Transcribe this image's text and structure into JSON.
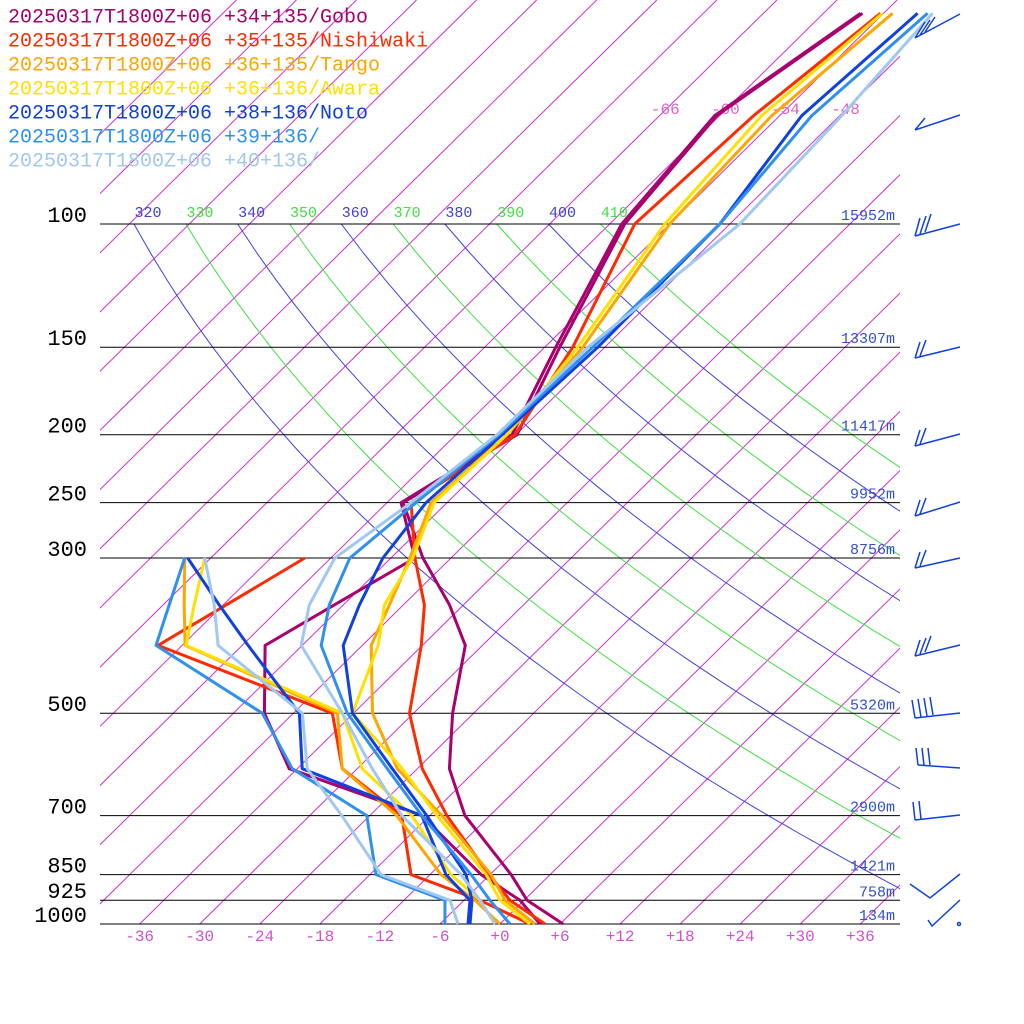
{
  "chart_data": {
    "type": "skewt",
    "pressure_levels": [
      100,
      150,
      200,
      250,
      300,
      500,
      700,
      850,
      925,
      1000
    ],
    "heights": [
      "15952m",
      "13307m",
      "11417m",
      "9952m",
      "8756m",
      "5320m",
      "2900m",
      "1421m",
      "758m",
      "134m"
    ],
    "xticks": [
      -36,
      -30,
      -24,
      -18,
      -12,
      -6,
      {
        "value": 0,
        "label": "+0"
      },
      {
        "value": 6,
        "label": "+6"
      },
      {
        "value": 12,
        "label": "+12"
      },
      {
        "value": 18,
        "label": "+18"
      },
      {
        "value": 24,
        "label": "+24"
      },
      {
        "value": 30,
        "label": "+30"
      },
      {
        "value": 36,
        "label": "+36"
      }
    ],
    "isotherms": [
      -120,
      -114,
      -108,
      -102,
      -96,
      -90,
      -84,
      -78,
      -72,
      -66,
      -60,
      -54,
      -48,
      -42,
      -36,
      -30,
      -24,
      -18,
      -12,
      -6,
      0,
      6,
      12,
      18,
      24,
      30,
      36
    ],
    "isotherm_labels": [
      -66,
      -60,
      -54,
      -48
    ],
    "dry_adiabats": [
      320,
      330,
      340,
      350,
      360,
      370,
      380,
      390,
      400,
      410
    ],
    "pressure": [
      1000,
      925,
      850,
      700,
      600,
      500,
      400,
      350,
      300,
      250,
      200,
      150,
      100,
      70,
      50
    ],
    "series": [
      {
        "name": "20250317T1800Z+06 +34+135/Gobo",
        "color": "#a8006e",
        "temperature": [
          6.3,
          0.3,
          -3.9,
          -14.5,
          -20.8,
          -26.1,
          -31.7,
          -37.4,
          -44.8,
          -52.4,
          -47.9,
          -52.5,
          -58.5,
          -60.3,
          -56.1
        ],
        "dewpoint": [
          4.0,
          -0.4,
          -6.9,
          -18.8,
          -36.8,
          -44.9,
          -51.7,
          -48.9,
          -45.6,
          -52.6,
          -48.4,
          -52.9,
          -58.8,
          -60.5,
          -56.3
        ]
      },
      {
        "name": "20250317T1800Z+06 +35+135/Nishiwaki",
        "color": "#ff2a00",
        "temperature": [
          4.5,
          -1.4,
          -6.1,
          -16.3,
          -23.5,
          -30.4,
          -36.1,
          -39.9,
          -45.6,
          -51.6,
          -48.1,
          -51.2,
          -57.5,
          -56.6,
          -54.3
        ],
        "dewpoint": [
          3.0,
          -4.4,
          -13.9,
          -20.8,
          -31.5,
          -38.1,
          -62.4,
          -59.7,
          -56.6,
          null,
          null,
          null,
          null,
          null,
          null
        ]
      },
      {
        "name": "20250317T1800Z+06 +36+135/Tango",
        "color": "#ffa500",
        "temperature": [
          3.5,
          -1.9,
          -5.9,
          -16.8,
          -26.0,
          -34.1,
          -41.1,
          -43.4,
          -46.1,
          -49.6,
          -48.9,
          -50.2,
          -54.0,
          -54.8,
          -53.1
        ],
        "dewpoint": [
          0,
          -4.9,
          -10.9,
          -21.3,
          -31.5,
          -37.6,
          -59.7,
          -63.9,
          -68.6,
          null,
          null,
          null,
          null,
          null,
          null
        ]
      },
      {
        "name": "20250317T1800Z+06 +36+136/Awara",
        "color": "#ffe000",
        "temperature": [
          3.0,
          -2.4,
          -6.4,
          -17.3,
          -25.5,
          -36.1,
          -40.4,
          -43.9,
          -45.8,
          -49.3,
          -48.9,
          -50.7,
          -54.5,
          -55.8,
          -54.1
        ],
        "dewpoint": [
          -0.5,
          -4.4,
          -9.9,
          -19.8,
          -29.5,
          -37.1,
          -59.6,
          -62.9,
          -66.6,
          null,
          null,
          null,
          null,
          null,
          null
        ]
      },
      {
        "name": "20250317T1800Z+06 +38+136/Noto",
        "color": "#1040e0",
        "temperature": [
          -3.0,
          -5.2,
          -8.4,
          -18.3,
          -26.5,
          -36.1,
          -43.9,
          -46.4,
          -48.8,
          -50.1,
          -49.4,
          -48.7,
          -49.0,
          -51.8,
          -50.6
        ],
        "dewpoint": [
          -3.2,
          -5.4,
          -10.4,
          -18.8,
          -35.5,
          -41.4,
          -53.4,
          -60.4,
          -68.3,
          null,
          null,
          null,
          null,
          null,
          null
        ]
      },
      {
        "name": "20250317T1800Z+06 +39+136/",
        "color": "#3090f0",
        "temperature": [
          1.0,
          -3.4,
          -7.9,
          -18.8,
          -27.0,
          -36.6,
          -46.1,
          -49.4,
          -52.1,
          -51.1,
          -49.7,
          -49.2,
          -49.0,
          -50.8,
          -49.6
        ],
        "dewpoint": [
          -5.5,
          -7.9,
          -17.4,
          -24.3,
          -36.5,
          -45.1,
          -62.6,
          -65.4,
          -68.6,
          null,
          null,
          null,
          null,
          null,
          null
        ]
      },
      {
        "name": "20250317T1800Z+06 +40+136/",
        "color": "#a0c8f0",
        "temperature": [
          -0.5,
          -4.4,
          -8.9,
          -20.8,
          -28.5,
          -37.1,
          -48.1,
          -51.4,
          -53.6,
          -51.6,
          -49.9,
          -49.7,
          -47.0,
          -47.8,
          -49.1
        ],
        "dewpoint": [
          -4.2,
          -7.4,
          -16.9,
          -26.8,
          -35.0,
          -41.1,
          -56.4,
          -60.9,
          -66.6,
          null,
          null,
          null,
          null,
          null,
          null
        ]
      }
    ]
  }
}
